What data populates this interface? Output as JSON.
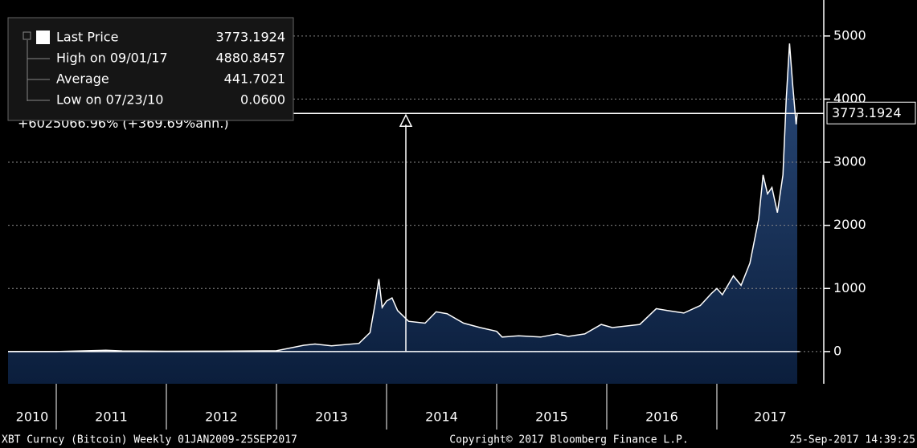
{
  "chart_data": {
    "type": "area",
    "legend": [
      {
        "name": "Last Price",
        "label": "3773.1924"
      },
      {
        "name": "High on 09/01/17",
        "label": "4880.8457"
      },
      {
        "name": "Average",
        "label": "441.7021"
      },
      {
        "name": "Low on 07/23/10",
        "label": "0.0600"
      }
    ],
    "annotation": "+6025066.96% (+369.69%ann.)",
    "last_label": "3773.1924",
    "x": [
      2010.562,
      2011.0,
      2011.45,
      2011.6,
      2012.0,
      2012.5,
      2013.0,
      2013.25,
      2013.35,
      2013.5,
      2013.75,
      2013.85,
      2013.9,
      2013.93,
      2013.96,
      2014.0,
      2014.05,
      2014.1,
      2014.2,
      2014.35,
      2014.45,
      2014.55,
      2014.7,
      2014.85,
      2015.0,
      2015.05,
      2015.2,
      2015.4,
      2015.55,
      2015.65,
      2015.8,
      2015.95,
      2016.05,
      2016.3,
      2016.45,
      2016.55,
      2016.7,
      2016.85,
      2016.95,
      2017.0,
      2017.05,
      2017.15,
      2017.22,
      2017.3,
      2017.38,
      2017.42,
      2017.46,
      2017.5,
      2017.55,
      2017.6,
      2017.63,
      2017.66,
      2017.69,
      2017.72,
      2017.73
    ],
    "values": [
      0.06,
      0.3,
      20,
      10,
      5,
      7,
      13,
      100,
      120,
      90,
      130,
      300,
      800,
      1150,
      700,
      800,
      850,
      650,
      480,
      450,
      630,
      600,
      450,
      380,
      320,
      230,
      250,
      230,
      280,
      240,
      280,
      430,
      380,
      430,
      680,
      650,
      610,
      730,
      920,
      1000,
      900,
      1200,
      1050,
      1400,
      2100,
      2800,
      2500,
      2600,
      2200,
      2800,
      4000,
      4880.8457,
      4200,
      3600,
      3773.1924
    ],
    "color": "#ffffff",
    "xlim": [
      2010.562,
      2017.971
    ],
    "xticks": [
      2011,
      2012,
      2013,
      2014,
      2015,
      2016,
      2017
    ],
    "year_labels": [
      "2010",
      "2011",
      "2012",
      "2013",
      "2014",
      "2015",
      "2016",
      "2017"
    ],
    "ylim": [
      -510,
      5570
    ],
    "yticks": [
      0,
      1000,
      2000,
      3000,
      4000,
      5000
    ],
    "grid": true,
    "footer": [
      "XBT Curncy (Bitcoin)  Weekly 01JAN2009-25SEP2017",
      "Copyright© 2017 Bloomberg Finance L.P.",
      "25-Sep-2017 14:39:25"
    ]
  }
}
